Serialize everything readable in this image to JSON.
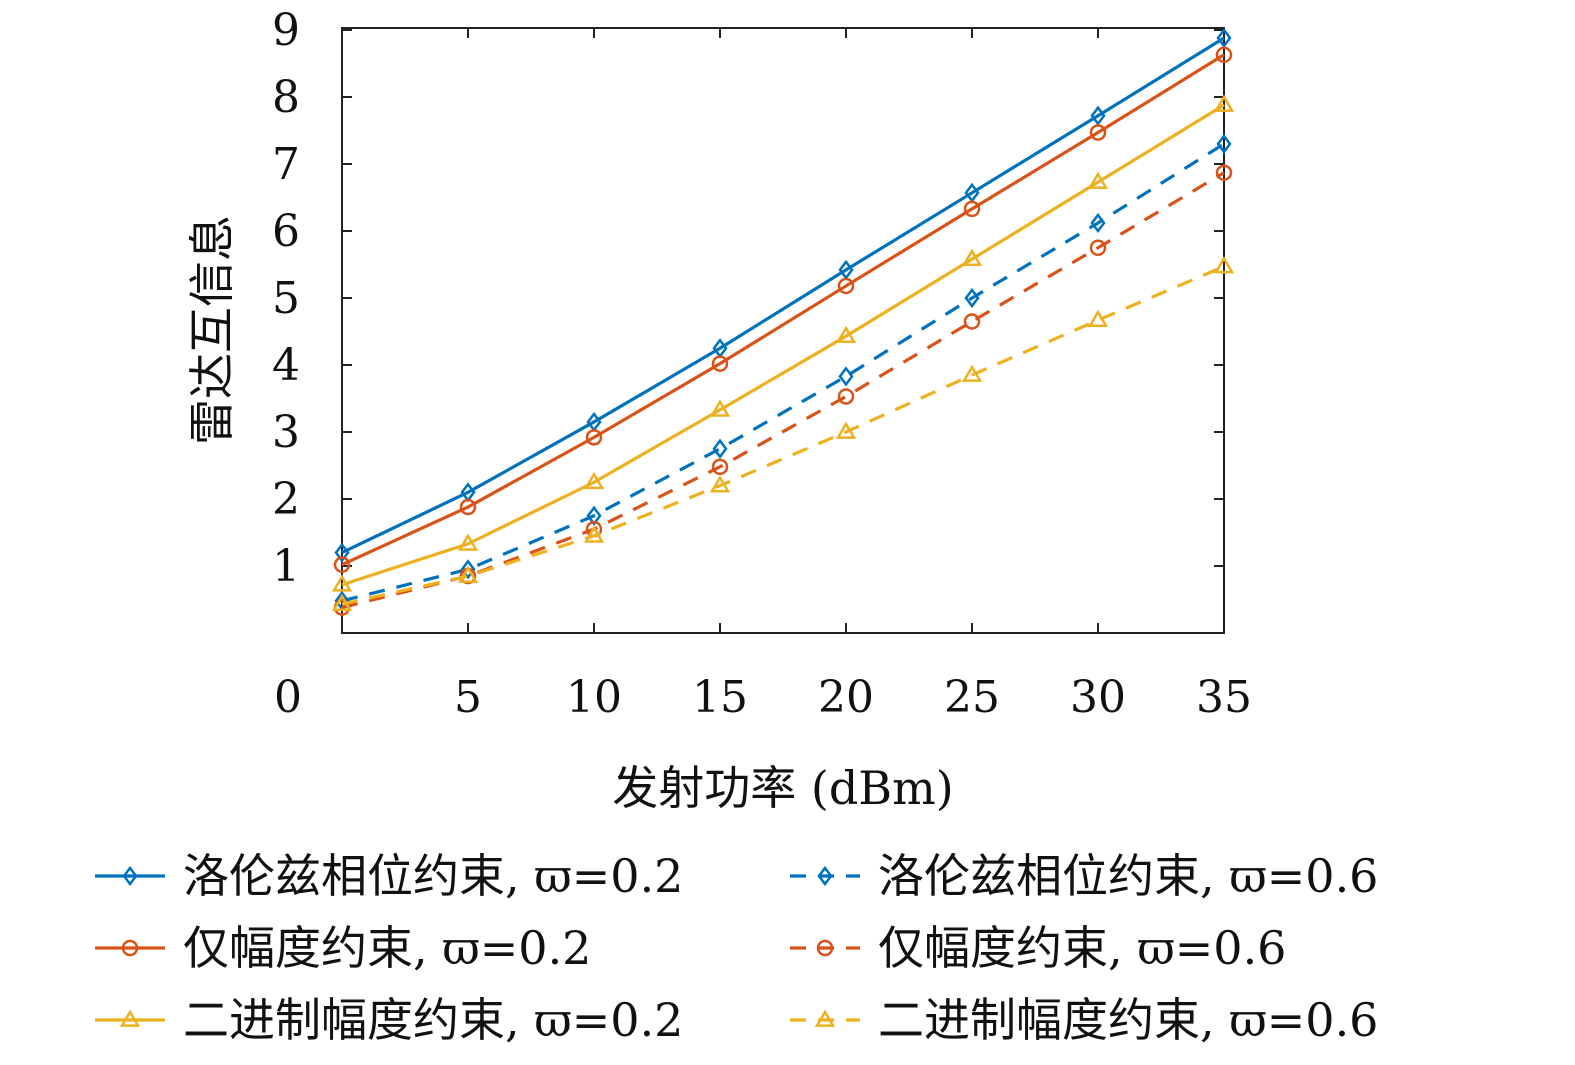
{
  "chart_data": {
    "type": "line",
    "title": "",
    "xlabel": "发射功率 (dBm)",
    "ylabel": "雷达互信息",
    "xlim": [
      0,
      35
    ],
    "ylim": [
      0,
      9
    ],
    "x_ticks": [
      0,
      5,
      10,
      15,
      20,
      25,
      30,
      35
    ],
    "y_ticks": [
      1,
      2,
      3,
      4,
      5,
      6,
      7,
      8,
      9
    ],
    "grid": false,
    "legend_position": "bottom",
    "x": [
      0,
      5,
      10,
      15,
      20,
      25,
      30,
      35
    ],
    "series": [
      {
        "name": "洛伦兹相位约束, ϖ=0.2",
        "color": "#0072BD",
        "dash": "solid",
        "marker": "diamond",
        "values": [
          1.2,
          2.1,
          3.15,
          4.25,
          5.42,
          6.57,
          7.72,
          8.88
        ]
      },
      {
        "name": "洛伦兹相位约束, ϖ=0.6",
        "color": "#0072BD",
        "dash": "dashed",
        "marker": "diamond",
        "values": [
          0.48,
          0.95,
          1.75,
          2.75,
          3.83,
          5.0,
          6.12,
          7.3
        ]
      },
      {
        "name": "仅幅度约束, ϖ=0.2",
        "color": "#D95319",
        "dash": "solid",
        "marker": "circle",
        "values": [
          1.02,
          1.88,
          2.92,
          4.02,
          5.18,
          6.33,
          7.47,
          8.63
        ]
      },
      {
        "name": "仅幅度约束, ϖ=0.6",
        "color": "#D95319",
        "dash": "dashed",
        "marker": "circle",
        "values": [
          0.38,
          0.85,
          1.55,
          2.48,
          3.53,
          4.65,
          5.75,
          6.87
        ]
      },
      {
        "name": "二进制幅度约束, ϖ=0.2",
        "color": "#EDB120",
        "dash": "solid",
        "marker": "triangle",
        "values": [
          0.72,
          1.33,
          2.25,
          3.33,
          4.43,
          5.58,
          6.73,
          7.88
        ]
      },
      {
        "name": "二进制幅度约束, ϖ=0.6",
        "color": "#EDB120",
        "dash": "dashed",
        "marker": "triangle",
        "values": [
          0.43,
          0.85,
          1.45,
          2.2,
          3.0,
          3.85,
          4.67,
          5.47
        ]
      }
    ],
    "legend": {
      "rows": [
        [
          "洛伦兹相位约束, ϖ=0.2",
          "洛伦兹相位约束, ϖ=0.6"
        ],
        [
          "仅幅度约束, ϖ=0.2",
          "仅幅度约束, ϖ=0.6"
        ],
        [
          "二进制幅度约束, ϖ=0.2",
          "二进制幅度约束, ϖ=0.6"
        ]
      ]
    }
  }
}
